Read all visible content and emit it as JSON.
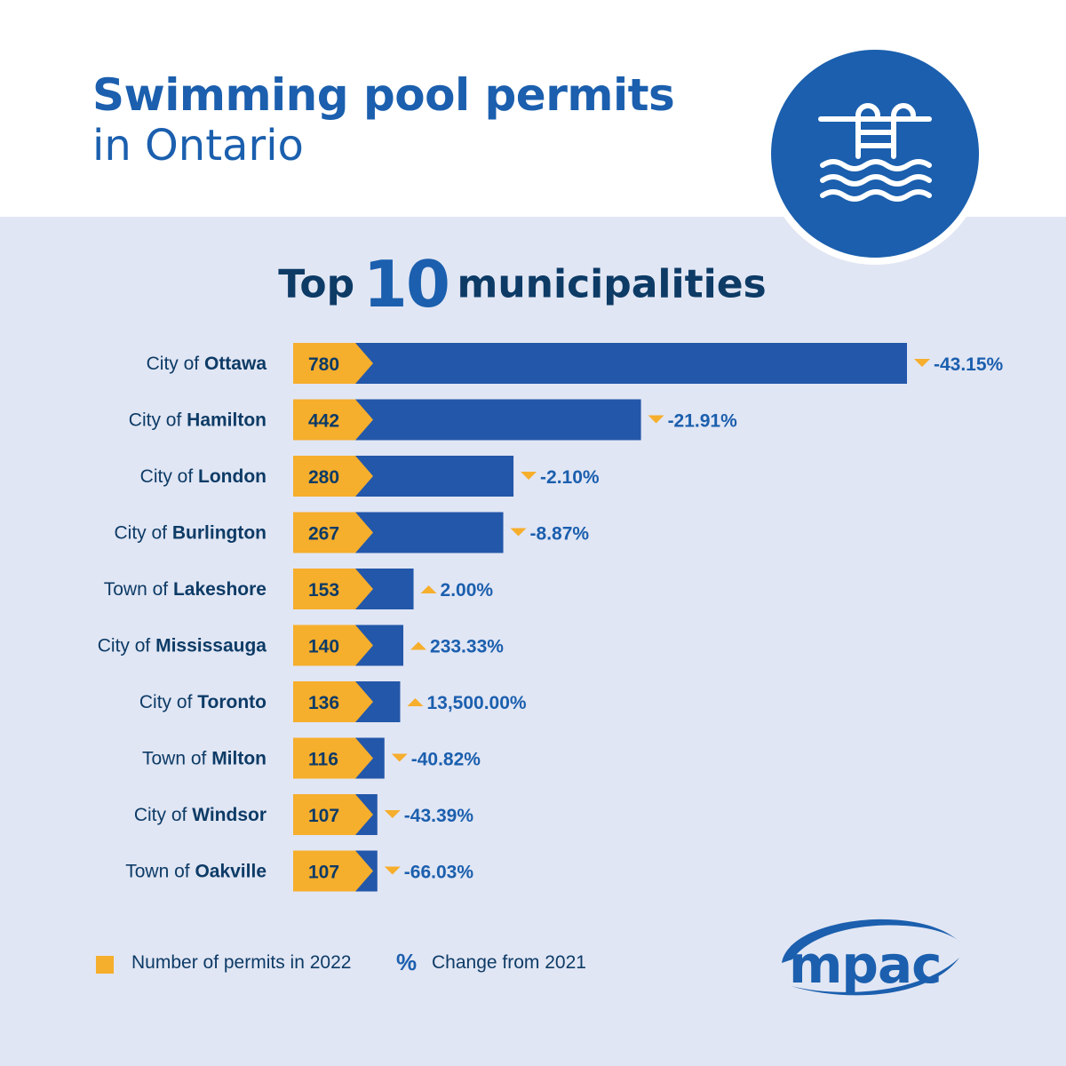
{
  "title": {
    "line1": "Swimming pool permits",
    "line2": "in Ontario"
  },
  "icon": "swimming-pool-icon",
  "subheading": {
    "before": "Top",
    "number": "10",
    "after": "municipalities"
  },
  "colors": {
    "brand_blue": "#1b5fae",
    "bar_blue": "#2357a9",
    "count_orange": "#f6ae2d",
    "navy_text": "#0d3b66",
    "background": "#e1e6f4"
  },
  "chart_data": {
    "type": "bar",
    "orientation": "horizontal",
    "categories": [
      {
        "prefix": "City of",
        "name": "Ottawa"
      },
      {
        "prefix": "City of",
        "name": "Hamilton"
      },
      {
        "prefix": "City of",
        "name": "London"
      },
      {
        "prefix": "City of",
        "name": "Burlington"
      },
      {
        "prefix": "Town of",
        "name": "Lakeshore"
      },
      {
        "prefix": "City of",
        "name": "Mississauga"
      },
      {
        "prefix": "City of",
        "name": "Toronto"
      },
      {
        "prefix": "Town of",
        "name": "Milton"
      },
      {
        "prefix": "City of",
        "name": "Windsor"
      },
      {
        "prefix": "Town of",
        "name": "Oakville"
      }
    ],
    "values": [
      780,
      442,
      280,
      267,
      153,
      140,
      136,
      116,
      107,
      107
    ],
    "change": [
      {
        "text": "-43.15%",
        "direction": "down"
      },
      {
        "text": "-21.91%",
        "direction": "down"
      },
      {
        "text": "-2.10%",
        "direction": "down"
      },
      {
        "text": "-8.87%",
        "direction": "down"
      },
      {
        "text": "2.00%",
        "direction": "up"
      },
      {
        "text": "233.33%",
        "direction": "up"
      },
      {
        "text": "13,500.00%",
        "direction": "up"
      },
      {
        "text": "-40.82%",
        "direction": "down"
      },
      {
        "text": "-43.39%",
        "direction": "down"
      },
      {
        "text": "-66.03%",
        "direction": "down"
      }
    ]
  },
  "legend": {
    "count_label": "Number of permits in 2022",
    "pct_symbol": "%",
    "pct_label": "Change from 2021"
  },
  "logo": {
    "text": "mpac"
  }
}
